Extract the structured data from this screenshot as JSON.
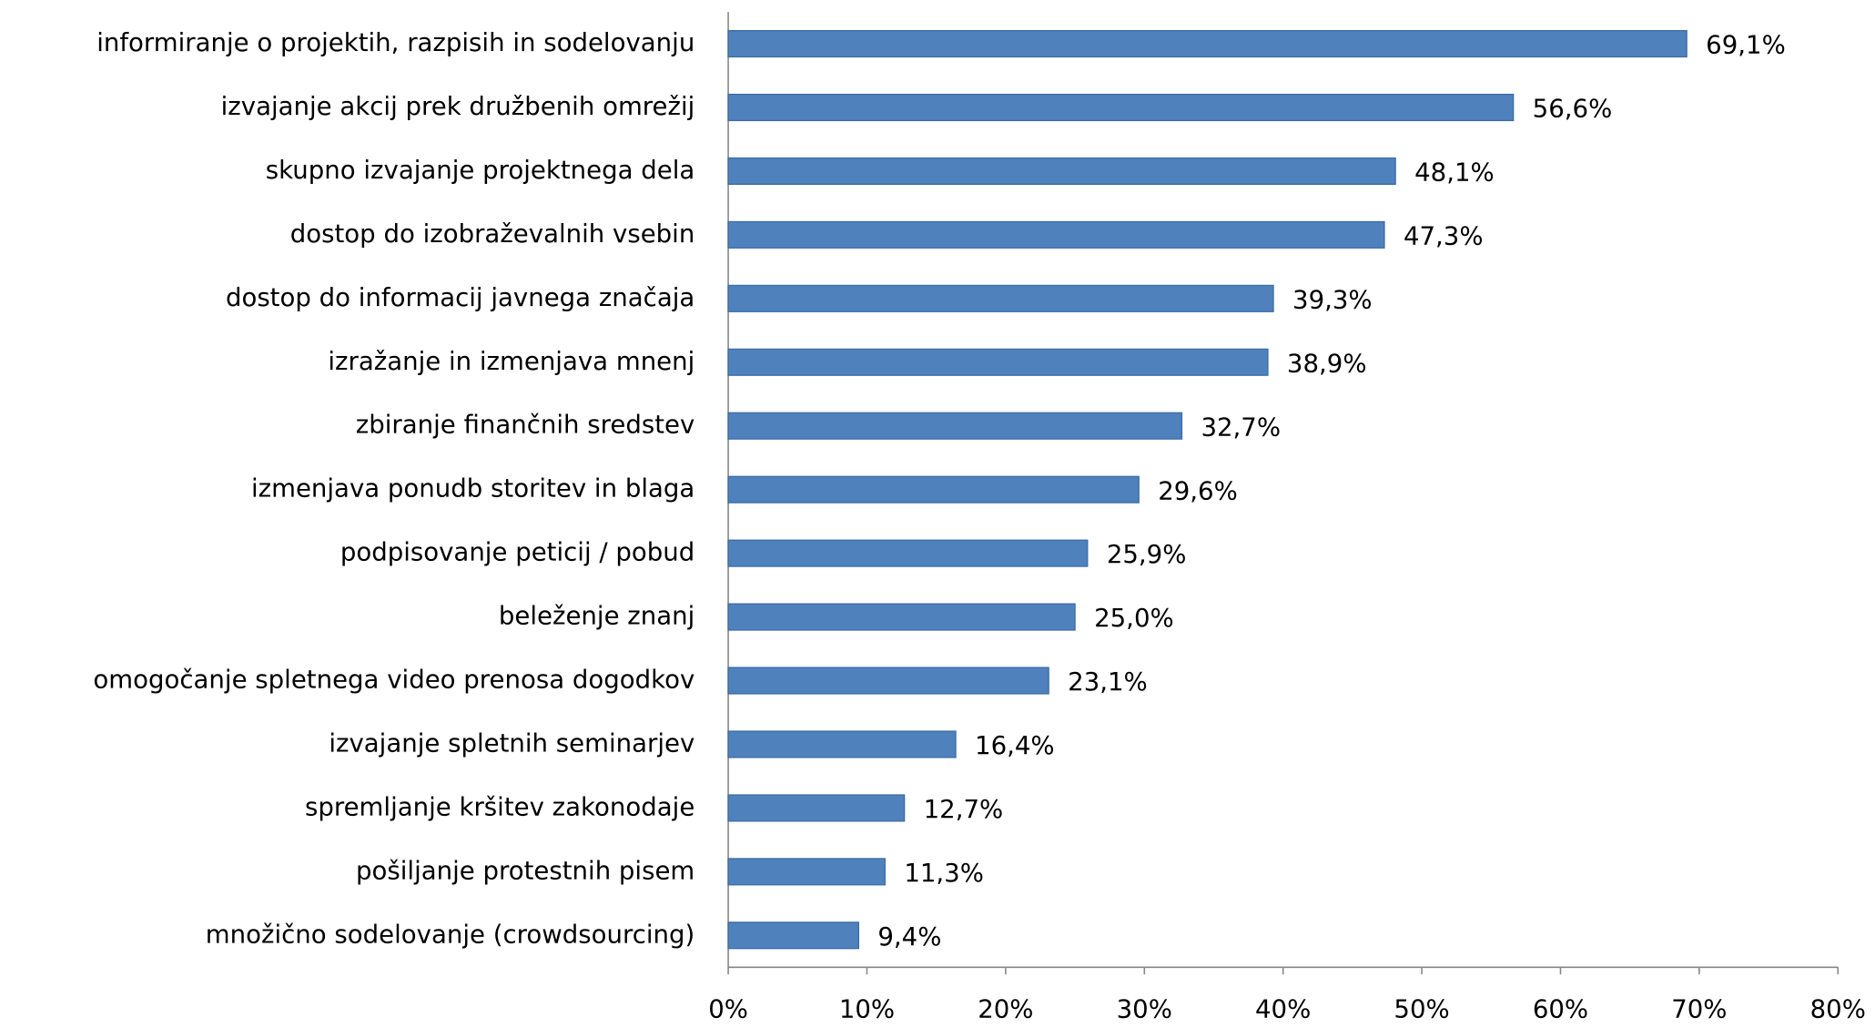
{
  "chart_data": {
    "type": "barh",
    "categories": [
      "informiranje o projektih, razpisih in sodelovanju",
      "izvajanje akcij prek družbenih omrežij",
      "skupno izvajanje projektnega dela",
      "dostop do izobraževalnih vsebin",
      "dostop do informacij javnega značaja",
      "izražanje in izmenjava mnenj",
      "zbiranje finančnih sredstev",
      "izmenjava ponudb storitev in blaga",
      "podpisovanje peticij / pobud",
      "beleženje znanj",
      "omogočanje spletnega video prenosa dogodkov",
      "izvajanje spletnih seminarjev",
      "spremljanje kršitev zakonodaje",
      "pošiljanje protestnih pisem",
      "množično sodelovanje (crowdsourcing)"
    ],
    "values": [
      69.1,
      56.6,
      48.1,
      47.3,
      39.3,
      38.9,
      32.7,
      29.6,
      25.9,
      25.0,
      23.1,
      16.4,
      12.7,
      11.3,
      9.4
    ],
    "value_labels": [
      "69,1%",
      "56,6%",
      "48,1%",
      "47,3%",
      "39,3%",
      "38,9%",
      "32,7%",
      "29,6%",
      "25,9%",
      "25,0%",
      "23,1%",
      "16,4%",
      "12,7%",
      "11,3%",
      "9,4%"
    ],
    "color": "#4f81bd",
    "xlim": [
      0,
      80
    ],
    "xticks": [
      {
        "value": 0,
        "label": "0%"
      },
      {
        "value": 10,
        "label": "10%"
      },
      {
        "value": 20,
        "label": "20%"
      },
      {
        "value": 30,
        "label": "30%"
      },
      {
        "value": 40,
        "label": "40%"
      },
      {
        "value": 50,
        "label": "50%"
      },
      {
        "value": 60,
        "label": "60%"
      },
      {
        "value": 70,
        "label": "70%"
      },
      {
        "value": 80,
        "label": "80%"
      }
    ],
    "grid": false
  }
}
